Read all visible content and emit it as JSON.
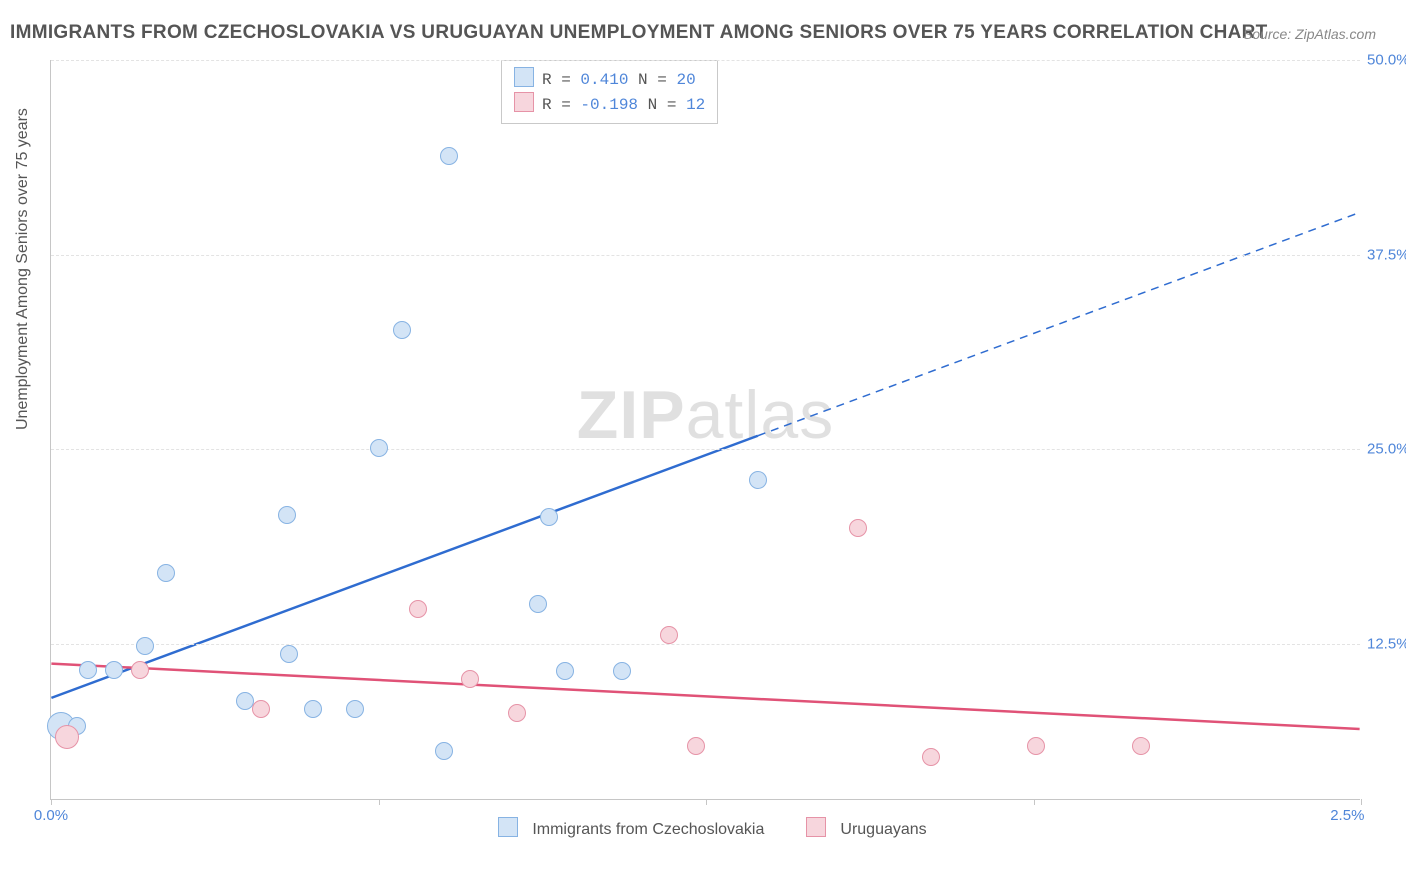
{
  "title": "IMMIGRANTS FROM CZECHOSLOVAKIA VS URUGUAYAN UNEMPLOYMENT AMONG SENIORS OVER 75 YEARS CORRELATION CHART",
  "source": "Source: ZipAtlas.com",
  "y_axis_label": "Unemployment Among Seniors over 75 years",
  "watermark": "ZIPatlas",
  "chart": {
    "type": "scatter",
    "background_color": "#ffffff",
    "grid_color": "#e3e3e3",
    "axis_color": "#c6c6c6",
    "tick_font_color": "#4f86d9",
    "label_font_color": "#555555",
    "title_font_color": "#555555",
    "title_fontsize": 19,
    "label_fontsize": 16,
    "tick_fontsize": 15,
    "xlim": [
      0.0,
      2.5
    ],
    "ylim": [
      2.5,
      50.0
    ],
    "y_ticks": [
      50.0,
      37.5,
      25.0,
      12.5
    ],
    "y_tick_labels": [
      "50.0%",
      "37.5%",
      "25.0%",
      "12.5%"
    ],
    "x_ticks": [
      0.0,
      2.5
    ],
    "x_tick_labels": [
      "0.0%",
      "2.5%"
    ],
    "x_mark_positions": [
      0.0,
      0.625,
      1.25,
      1.875,
      2.5
    ],
    "marker_radius": 9,
    "marker_border": 1.5
  },
  "series": [
    {
      "id": "czech",
      "label": "Immigrants from Czechoslovakia",
      "fill": "#d3e4f6",
      "stroke": "#87b3e3",
      "line_color": "#2f6cd0",
      "R": "0.410",
      "N": "20",
      "points": [
        {
          "x": 0.02,
          "y": 7.2,
          "r": 14
        },
        {
          "x": 0.05,
          "y": 7.2,
          "r": 9
        },
        {
          "x": 0.07,
          "y": 10.8,
          "r": 9
        },
        {
          "x": 0.12,
          "y": 10.8,
          "r": 9
        },
        {
          "x": 0.18,
          "y": 12.3,
          "r": 9
        },
        {
          "x": 0.22,
          "y": 17.0,
          "r": 9
        },
        {
          "x": 0.37,
          "y": 8.8,
          "r": 9
        },
        {
          "x": 0.45,
          "y": 20.7,
          "r": 9
        },
        {
          "x": 0.455,
          "y": 11.8,
          "r": 9
        },
        {
          "x": 0.5,
          "y": 8.3,
          "r": 9
        },
        {
          "x": 0.58,
          "y": 8.3,
          "r": 9
        },
        {
          "x": 0.67,
          "y": 32.6,
          "r": 9
        },
        {
          "x": 0.625,
          "y": 25.0,
          "r": 9
        },
        {
          "x": 0.75,
          "y": 5.6,
          "r": 9
        },
        {
          "x": 0.76,
          "y": 43.8,
          "r": 9
        },
        {
          "x": 0.93,
          "y": 15.0,
          "r": 9
        },
        {
          "x": 0.95,
          "y": 20.6,
          "r": 9
        },
        {
          "x": 0.98,
          "y": 10.7,
          "r": 9
        },
        {
          "x": 1.09,
          "y": 10.7,
          "r": 9
        },
        {
          "x": 1.35,
          "y": 23.0,
          "r": 9
        }
      ],
      "trend": {
        "x1": 0.0,
        "y1": 9.0,
        "x2": 2.5,
        "y2": 40.2,
        "solid_until_x": 1.35,
        "dash": "8,6"
      }
    },
    {
      "id": "uru",
      "label": "Uruguayans",
      "fill": "#f7d6dd",
      "stroke": "#e693a7",
      "line_color": "#e05277",
      "R": "-0.198",
      "N": "12",
      "points": [
        {
          "x": 0.03,
          "y": 6.5,
          "r": 12
        },
        {
          "x": 0.17,
          "y": 10.8,
          "r": 9
        },
        {
          "x": 0.4,
          "y": 8.3,
          "r": 9
        },
        {
          "x": 0.7,
          "y": 14.7,
          "r": 9
        },
        {
          "x": 0.8,
          "y": 10.2,
          "r": 9
        },
        {
          "x": 0.89,
          "y": 8.0,
          "r": 9
        },
        {
          "x": 1.18,
          "y": 13.0,
          "r": 9
        },
        {
          "x": 1.23,
          "y": 5.9,
          "r": 9
        },
        {
          "x": 1.54,
          "y": 19.9,
          "r": 9
        },
        {
          "x": 1.68,
          "y": 5.2,
          "r": 9
        },
        {
          "x": 1.88,
          "y": 5.9,
          "r": 9
        },
        {
          "x": 2.08,
          "y": 5.9,
          "r": 9
        }
      ],
      "trend": {
        "x1": 0.0,
        "y1": 11.2,
        "x2": 2.5,
        "y2": 7.0,
        "solid_until_x": 2.5,
        "dash": null
      }
    }
  ],
  "legend_top": {
    "rows": [
      {
        "swatch_fill": "#d3e4f6",
        "swatch_stroke": "#87b3e3",
        "r_label": "R =",
        "r_value": "0.410",
        "n_label": "N =",
        "n_value": "20"
      },
      {
        "swatch_fill": "#f7d6dd",
        "swatch_stroke": "#e693a7",
        "r_label": "R =",
        "r_value": "-0.198",
        "n_label": "N =",
        "n_value": "12"
      }
    ]
  },
  "legend_bottom": [
    {
      "swatch_fill": "#d3e4f6",
      "swatch_stroke": "#87b3e3",
      "label": "Immigrants from Czechoslovakia"
    },
    {
      "swatch_fill": "#f7d6dd",
      "swatch_stroke": "#e693a7",
      "label": "Uruguayans"
    }
  ]
}
